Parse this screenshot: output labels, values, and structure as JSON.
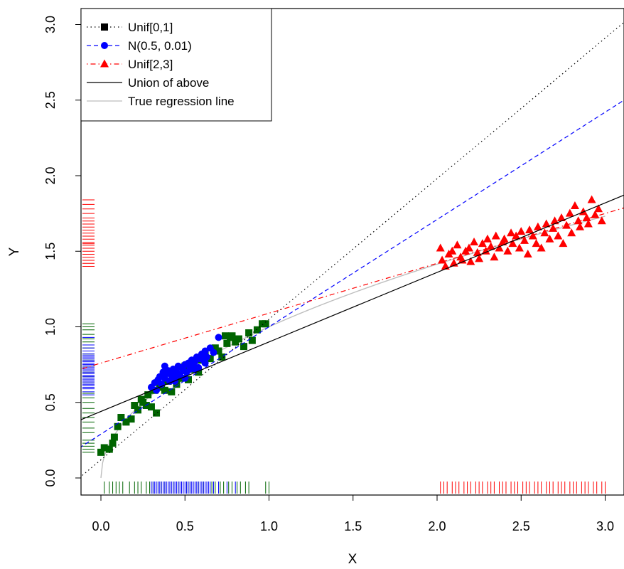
{
  "chart_data": {
    "type": "scatter",
    "xlabel": "X",
    "ylabel": "Y",
    "xlim": [
      -0.12,
      3.12
    ],
    "ylim": [
      -0.12,
      3.12
    ],
    "x_ticks": [
      "0.0",
      "0.5",
      "1.0",
      "1.5",
      "2.0",
      "2.5",
      "3.0"
    ],
    "y_ticks": [
      "0.0",
      "0.5",
      "1.0",
      "1.5",
      "2.0",
      "2.5",
      "3.0"
    ],
    "legend_position": "top-left",
    "legend": [
      {
        "label": "Unif[0,1]",
        "color": "#000000",
        "line": "dotted",
        "marker": "square"
      },
      {
        "label": "N(0.5, 0.01)",
        "color": "#0000ff",
        "line": "dashed",
        "marker": "circle"
      },
      {
        "label": "Unif[2,3]",
        "color": "#ff0000",
        "line": "dotdash",
        "marker": "triangle"
      },
      {
        "label": "Union of above",
        "color": "#000000",
        "line": "solid",
        "marker": "none"
      },
      {
        "label": "True regression line",
        "color": "#bebebe",
        "line": "solid",
        "marker": "none"
      }
    ],
    "colors": {
      "unif01": "#006400",
      "normal": "#0000ff",
      "unif23": "#ff0000"
    },
    "series": [
      {
        "name": "Unif[0,1]",
        "color": "#006400",
        "marker": "square",
        "x": [
          0.0,
          0.02,
          0.05,
          0.07,
          0.08,
          0.1,
          0.12,
          0.15,
          0.18,
          0.2,
          0.22,
          0.24,
          0.25,
          0.27,
          0.28,
          0.3,
          0.32,
          0.33,
          0.35,
          0.36,
          0.38,
          0.4,
          0.42,
          0.44,
          0.45,
          0.47,
          0.5,
          0.52,
          0.55,
          0.58,
          0.6,
          0.62,
          0.65,
          0.68,
          0.7,
          0.72,
          0.74,
          0.75,
          0.77,
          0.78,
          0.8,
          0.82,
          0.85,
          0.88,
          0.9,
          0.93,
          0.96,
          0.98
        ],
        "y": [
          0.17,
          0.2,
          0.19,
          0.23,
          0.27,
          0.34,
          0.4,
          0.37,
          0.39,
          0.48,
          0.45,
          0.52,
          0.5,
          0.48,
          0.55,
          0.47,
          0.58,
          0.43,
          0.6,
          0.62,
          0.58,
          0.64,
          0.57,
          0.68,
          0.62,
          0.66,
          0.74,
          0.65,
          0.72,
          0.7,
          0.78,
          0.82,
          0.79,
          0.86,
          0.84,
          0.8,
          0.94,
          0.89,
          0.93,
          0.94,
          0.9,
          0.92,
          0.87,
          0.96,
          0.91,
          0.98,
          1.02,
          1.02
        ]
      },
      {
        "name": "N(0.5, 0.01)",
        "color": "#0000ff",
        "marker": "circle",
        "x": [
          0.3,
          0.32,
          0.34,
          0.35,
          0.36,
          0.37,
          0.38,
          0.39,
          0.4,
          0.41,
          0.42,
          0.43,
          0.44,
          0.45,
          0.46,
          0.47,
          0.48,
          0.49,
          0.5,
          0.51,
          0.52,
          0.53,
          0.54,
          0.55,
          0.56,
          0.57,
          0.58,
          0.59,
          0.6,
          0.61,
          0.62,
          0.63,
          0.65,
          0.67,
          0.7,
          0.33,
          0.38,
          0.44,
          0.5,
          0.56,
          0.62
        ],
        "y": [
          0.6,
          0.63,
          0.65,
          0.67,
          0.62,
          0.7,
          0.66,
          0.69,
          0.71,
          0.64,
          0.68,
          0.72,
          0.66,
          0.7,
          0.74,
          0.68,
          0.73,
          0.71,
          0.75,
          0.7,
          0.76,
          0.72,
          0.78,
          0.74,
          0.77,
          0.8,
          0.73,
          0.79,
          0.82,
          0.78,
          0.84,
          0.8,
          0.86,
          0.83,
          0.93,
          0.58,
          0.74,
          0.64,
          0.66,
          0.72,
          0.76
        ]
      },
      {
        "name": "Unif[2,3]",
        "color": "#ff0000",
        "marker": "triangle",
        "x": [
          2.02,
          2.03,
          2.05,
          2.07,
          2.09,
          2.1,
          2.12,
          2.14,
          2.15,
          2.17,
          2.19,
          2.2,
          2.22,
          2.24,
          2.25,
          2.27,
          2.29,
          2.3,
          2.32,
          2.34,
          2.35,
          2.37,
          2.39,
          2.4,
          2.42,
          2.44,
          2.45,
          2.47,
          2.49,
          2.5,
          2.52,
          2.54,
          2.55,
          2.57,
          2.59,
          2.6,
          2.62,
          2.64,
          2.65,
          2.67,
          2.69,
          2.7,
          2.72,
          2.74,
          2.75,
          2.77,
          2.79,
          2.8,
          2.82,
          2.84,
          2.85,
          2.87,
          2.89,
          2.9,
          2.92,
          2.94,
          2.96,
          2.98
        ],
        "y": [
          1.52,
          1.44,
          1.4,
          1.48,
          1.5,
          1.42,
          1.54,
          1.46,
          1.44,
          1.5,
          1.52,
          1.43,
          1.56,
          1.49,
          1.45,
          1.55,
          1.5,
          1.58,
          1.53,
          1.46,
          1.6,
          1.52,
          1.56,
          1.58,
          1.5,
          1.62,
          1.55,
          1.6,
          1.52,
          1.63,
          1.57,
          1.48,
          1.64,
          1.6,
          1.55,
          1.66,
          1.52,
          1.62,
          1.68,
          1.58,
          1.65,
          1.7,
          1.6,
          1.72,
          1.55,
          1.67,
          1.75,
          1.62,
          1.8,
          1.7,
          1.66,
          1.76,
          1.72,
          1.68,
          1.84,
          1.74,
          1.78,
          1.7
        ]
      }
    ],
    "lines": [
      {
        "name": "Unif[0,1]",
        "color": "#000000",
        "style": "dotted",
        "intercept": 0.12,
        "slope": 0.93
      },
      {
        "name": "N(0.5, 0.01)",
        "color": "#0000ff",
        "style": "dashed",
        "intercept": 0.29,
        "slope": 0.71
      },
      {
        "name": "Unif[2,3]",
        "color": "#ff0000",
        "style": "dotdash",
        "intercept": 0.76,
        "slope": 0.33
      },
      {
        "name": "Union of above",
        "color": "#000000",
        "style": "solid",
        "intercept": 0.44,
        "slope": 0.46
      }
    ],
    "true_curve": {
      "name": "True regression line",
      "color": "#bebebe",
      "function": "y = sqrt(x)",
      "x_range": [
        0,
        3
      ]
    },
    "rug_x": {
      "unif01": [
        0.02,
        0.05,
        0.07,
        0.09,
        0.11,
        0.13,
        0.17,
        0.2,
        0.22,
        0.24,
        0.27,
        0.29,
        0.31,
        0.34,
        0.36,
        0.38,
        0.41,
        0.43,
        0.46,
        0.48,
        0.51,
        0.53,
        0.56,
        0.58,
        0.61,
        0.63,
        0.66,
        0.68,
        0.71,
        0.73,
        0.76,
        0.78,
        0.81,
        0.83,
        0.86,
        0.88,
        0.98,
        1.0
      ],
      "normal": [
        0.3,
        0.31,
        0.32,
        0.33,
        0.34,
        0.35,
        0.36,
        0.37,
        0.38,
        0.39,
        0.4,
        0.41,
        0.42,
        0.43,
        0.44,
        0.45,
        0.46,
        0.47,
        0.48,
        0.49,
        0.5,
        0.51,
        0.52,
        0.53,
        0.54,
        0.55,
        0.56,
        0.57,
        0.58,
        0.59,
        0.6,
        0.61,
        0.62,
        0.63,
        0.64,
        0.65,
        0.67,
        0.7,
        0.75,
        0.8
      ],
      "unif23": [
        2.02,
        2.04,
        2.06,
        2.09,
        2.11,
        2.13,
        2.16,
        2.18,
        2.2,
        2.23,
        2.25,
        2.27,
        2.3,
        2.32,
        2.34,
        2.37,
        2.39,
        2.41,
        2.44,
        2.46,
        2.48,
        2.51,
        2.53,
        2.55,
        2.58,
        2.6,
        2.62,
        2.65,
        2.67,
        2.69,
        2.72,
        2.74,
        2.76,
        2.79,
        2.81,
        2.83,
        2.86,
        2.88,
        2.9,
        2.93,
        2.95,
        2.98,
        3.0
      ]
    },
    "rug_y": {
      "unif01": [
        0.17,
        0.19,
        0.21,
        0.23,
        0.25,
        0.3,
        0.33,
        0.37,
        0.4,
        0.43,
        0.46,
        0.5,
        0.53,
        0.56,
        0.6,
        0.63,
        0.67,
        0.7,
        0.74,
        0.78,
        0.82,
        0.86,
        0.9,
        0.92,
        0.95,
        0.98,
        1.0,
        1.02
      ],
      "normal": [
        0.55,
        0.57,
        0.59,
        0.6,
        0.61,
        0.62,
        0.63,
        0.64,
        0.65,
        0.66,
        0.67,
        0.68,
        0.69,
        0.7,
        0.71,
        0.72,
        0.73,
        0.74,
        0.75,
        0.76,
        0.77,
        0.78,
        0.79,
        0.8,
        0.81,
        0.82,
        0.84,
        0.86,
        0.88,
        0.93
      ],
      "unif23": [
        1.4,
        1.42,
        1.44,
        1.46,
        1.48,
        1.5,
        1.52,
        1.54,
        1.55,
        1.56,
        1.58,
        1.6,
        1.62,
        1.64,
        1.66,
        1.68,
        1.7,
        1.72,
        1.75,
        1.78,
        1.81,
        1.84
      ]
    }
  }
}
